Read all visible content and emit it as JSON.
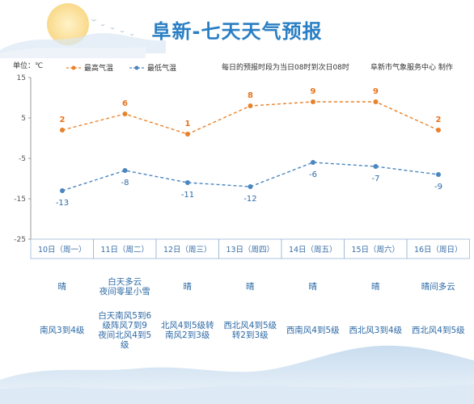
{
  "title": "阜新-七天天气预报",
  "unit_label": "单位：℃",
  "notes": {
    "forecast_period": "每日的预报时段为当日08时到次日08时",
    "producer": "阜新市气象服务中心 制作"
  },
  "colors": {
    "high": "#e8822a",
    "low": "#4a86c0",
    "title": "#2a7fc4",
    "text": "#2d6aa5"
  },
  "chart_data": {
    "type": "line",
    "categories": [
      "10日（周一）",
      "11日（周二）",
      "12日（周三）",
      "13日（周四）",
      "14日（周五）",
      "15日（周六）",
      "16日（周日）"
    ],
    "series": [
      {
        "name": "最高气温",
        "values": [
          2,
          6,
          1,
          8,
          9,
          9,
          2
        ]
      },
      {
        "name": "最低气温",
        "values": [
          -13,
          -8,
          -11,
          -12,
          -6,
          -7,
          -9
        ]
      }
    ],
    "ylim": [
      -25,
      15
    ],
    "yticks": [
      15,
      5,
      -5,
      -15,
      -25
    ],
    "legend": "top-left",
    "grid": false
  },
  "weather": [
    "晴",
    "白天多云\n夜间零星小雪",
    "晴",
    "晴",
    "晴",
    "晴",
    "晴间多云"
  ],
  "wind": [
    "南风3到4级",
    "白天南风5到6\n级阵风7到9\n夜间北风4到5\n级",
    "北风4到5级转\n南风2到3级",
    "西北风4到5级\n转2到3级",
    "西南风4到5级",
    "西北风3到4级",
    "西北风4到5级"
  ]
}
